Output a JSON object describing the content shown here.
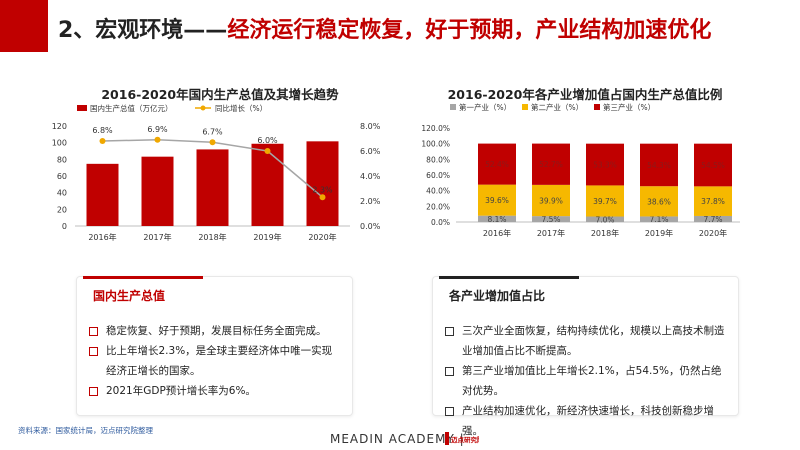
{
  "header": {
    "title_prefix": "2、宏观环境——",
    "title_main": "经济运行稳定恢复，好于预期，产业结构加速优化"
  },
  "chart_data": [
    {
      "type": "bar+line",
      "title": "2016-2020年国内生产总值及其增长趋势",
      "categories": [
        "2016年",
        "2017年",
        "2018年",
        "2019年",
        "2020年"
      ],
      "series": [
        {
          "name": "国内生产总值（万亿元）",
          "kind": "bar",
          "axis": "left",
          "color": "#c00000",
          "values": [
            74.6,
            83.2,
            91.9,
            98.7,
            101.6
          ]
        },
        {
          "name": "同比增长（%）",
          "kind": "line",
          "axis": "right",
          "color": "#f0a800",
          "values": [
            6.8,
            6.9,
            6.7,
            6.0,
            2.3
          ],
          "labels": [
            "6.8%",
            "6.9%",
            "6.7%",
            "6.0%",
            "2.3%"
          ]
        }
      ],
      "yleft": {
        "ylim": [
          0,
          120
        ],
        "ticks": [
          "0",
          "20",
          "40",
          "60",
          "80",
          "100",
          "120"
        ]
      },
      "yright": {
        "ylim": [
          0,
          8
        ],
        "ticks": [
          "0.0%",
          "2.0%",
          "4.0%",
          "6.0%",
          "8.0%"
        ]
      },
      "legend": "top-left",
      "grid": false
    },
    {
      "type": "stacked-bar",
      "title": "2016-2020年各产业增加值占国内生产总值比例",
      "categories": [
        "2016年",
        "2017年",
        "2018年",
        "2019年",
        "2020年"
      ],
      "series": [
        {
          "name": "第一产业（%）",
          "color": "#a6a6a6",
          "values": [
            8.1,
            7.5,
            7.0,
            7.1,
            7.7
          ],
          "labels": [
            "8.1%",
            "7.5%",
            "7.0%",
            "7.1%",
            "7.7%"
          ]
        },
        {
          "name": "第二产业（%）",
          "color": "#f6b800",
          "values": [
            39.6,
            39.9,
            39.7,
            38.6,
            37.8
          ],
          "labels": [
            "39.6%",
            "39.9%",
            "39.7%",
            "38.6%",
            "37.8%"
          ]
        },
        {
          "name": "第三产业（%）",
          "color": "#c00000",
          "values": [
            52.4,
            52.7,
            53.3,
            54.3,
            54.5
          ],
          "labels": [
            "52.4%",
            "52.7%",
            "53.3%",
            "54.3%",
            "54.5%"
          ]
        }
      ],
      "ylim": [
        0,
        120
      ],
      "ticks": [
        "0.0%",
        "20.0%",
        "40.0%",
        "60.0%",
        "80.0%",
        "100.0%",
        "120.0%"
      ],
      "legend": "top-left",
      "grid": false
    }
  ],
  "panels": {
    "left": {
      "heading": "国内生产总值",
      "items": [
        "稳定恢复、好于预期，发展目标任务全面完成。",
        "比上年增长2.3%，是全球主要经济体中唯一实现经济正增长的国家。",
        "2021年GDP预计增长率为6%。"
      ]
    },
    "right": {
      "heading": "各产业增加值占比",
      "items": [
        "三次产业全面恢复，结构持续优化，规模以上高技术制造业增加值占比不断提高。",
        "第三产业增加值比上年增长2.1%，占54.5%，仍然占绝对优势。",
        "产业结构加速优化，新经济快速增长，科技创新稳步增强。"
      ]
    }
  },
  "footer": {
    "source": "资料来源：国家统计局，迈点研究院整理",
    "brand": "MEADIN ACADEMY |",
    "logo_text": "迈点研究院"
  }
}
